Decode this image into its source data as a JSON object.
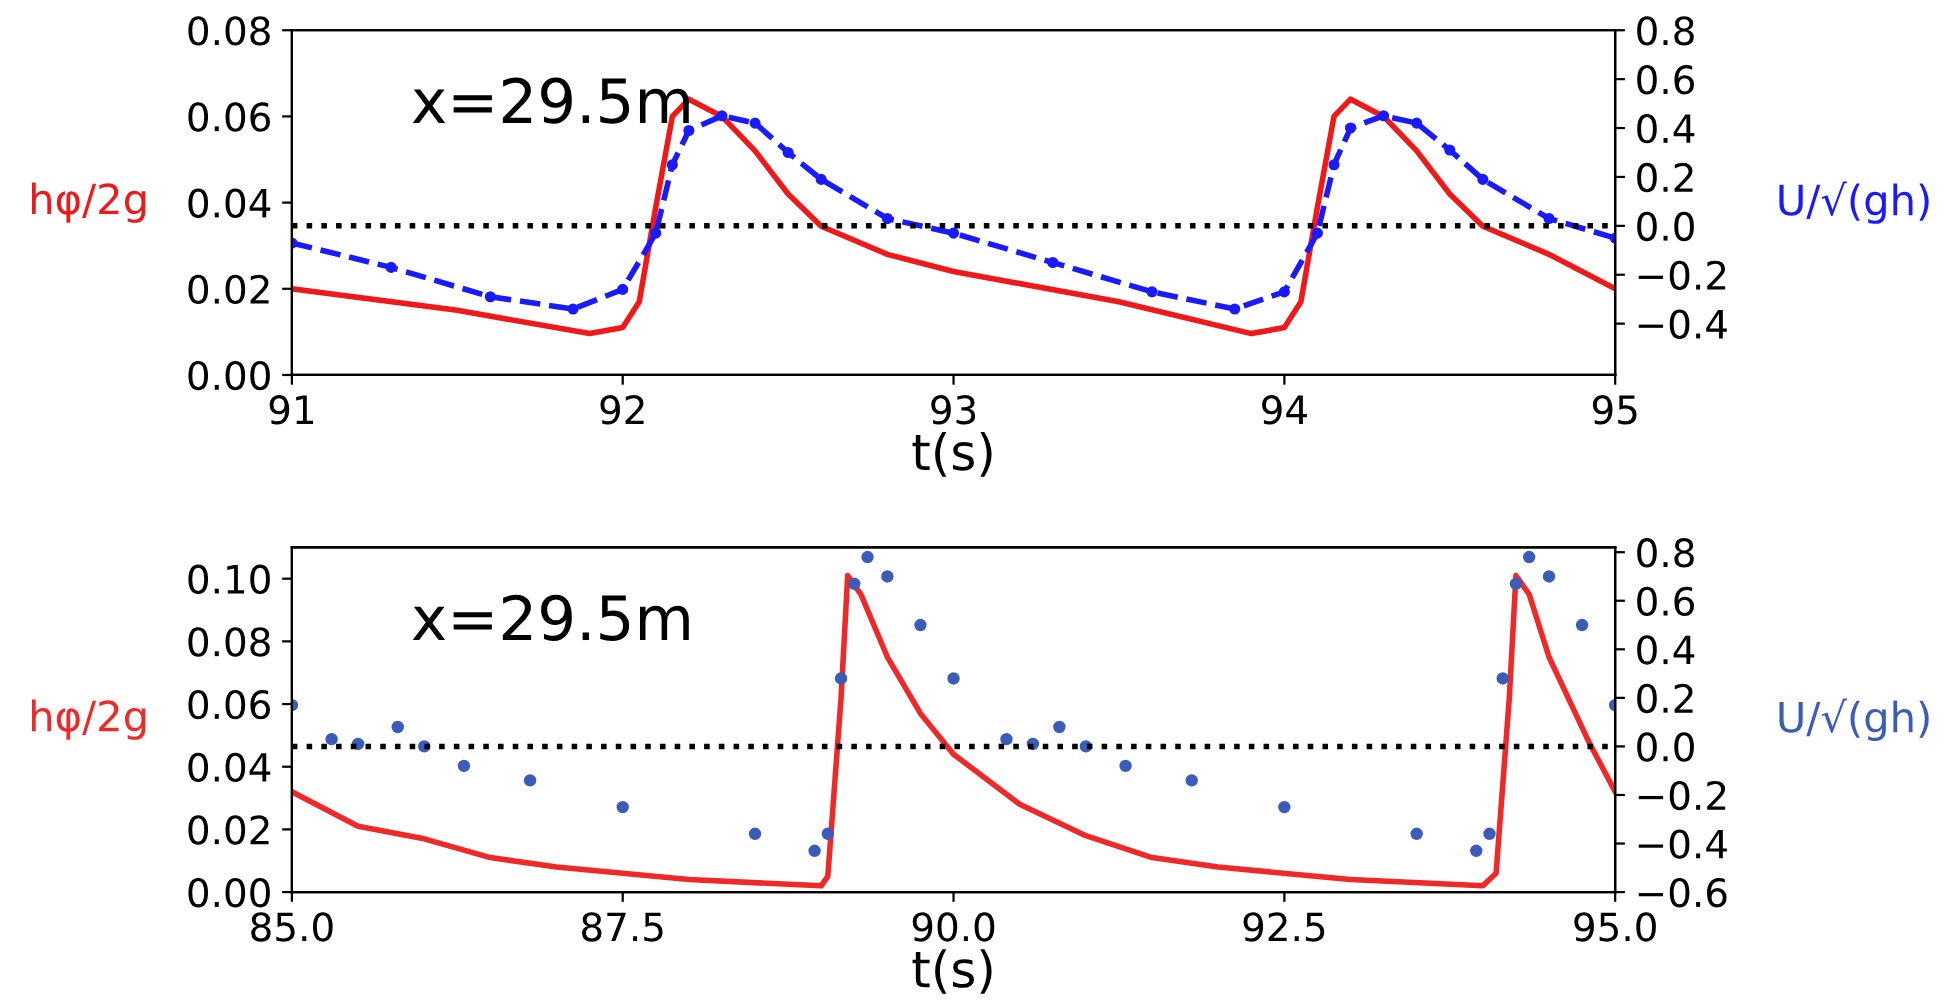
{
  "chart_data": [
    {
      "type": "line",
      "xlabel": "t(s)",
      "ylabel": "hφ/2g",
      "y2label": "U/√(gh)",
      "annotations": [
        "x=29.5m"
      ],
      "xlim": [
        91,
        95
      ],
      "xticks": [
        91,
        92,
        93,
        94,
        95
      ],
      "ylim": [
        0,
        0.08
      ],
      "yticks": [
        {
          "value": 0,
          "label": "0.00"
        },
        {
          "value": 0.02,
          "label": "0.02"
        },
        {
          "value": 0.04,
          "label": "0.04"
        },
        {
          "value": 0.06,
          "label": "0.06"
        },
        {
          "value": 0.08,
          "label": "0.08"
        }
      ],
      "y2lim": [
        -0.61,
        0.8
      ],
      "y2ticks": [
        {
          "value": -0.4,
          "label": "−0.4"
        },
        {
          "value": -0.2,
          "label": "−0.2"
        },
        {
          "value": 0,
          "label": "0.0"
        },
        {
          "value": 0.2,
          "label": "0.2"
        },
        {
          "value": 0.4,
          "label": "0.4"
        },
        {
          "value": 0.6,
          "label": "0.6"
        },
        {
          "value": 0.8,
          "label": "0.8"
        }
      ],
      "ref_lines": [
        {
          "axis": "y2",
          "value": 0,
          "color": "#000000",
          "line_style": "dotted"
        }
      ],
      "grid": false,
      "legend": false,
      "series": [
        {
          "color": "#f01818",
          "line_style": "solid",
          "marker": "none",
          "x": [
            91.0,
            91.5,
            91.9,
            92.0,
            92.05,
            92.1,
            92.15,
            92.2,
            92.3,
            92.4,
            92.5,
            92.6,
            92.8,
            93.0,
            93.5,
            93.9,
            94.0,
            94.05,
            94.1,
            94.15,
            94.2,
            94.3,
            94.4,
            94.5,
            94.6,
            94.8,
            95.0
          ],
          "values": [
            0.02,
            0.015,
            0.0096,
            0.011,
            0.017,
            0.039,
            0.06,
            0.064,
            0.06,
            0.052,
            0.042,
            0.0345,
            0.028,
            0.024,
            0.017,
            0.0096,
            0.011,
            0.017,
            0.039,
            0.06,
            0.064,
            0.06,
            0.052,
            0.042,
            0.0345,
            0.028,
            0.02
          ]
        },
        {
          "axis": "y2",
          "color": "#1a1aff",
          "line_style": "dashed",
          "marker": "circle",
          "x": [
            91.0,
            91.3,
            91.6,
            91.85,
            92.0,
            92.1,
            92.15,
            92.2,
            92.3,
            92.4,
            92.5,
            92.6,
            92.8,
            93.0,
            93.3,
            93.6,
            93.85,
            94.0,
            94.1,
            94.15,
            94.2,
            94.3,
            94.4,
            94.5,
            94.6,
            94.8,
            95.0
          ],
          "values": [
            -0.07,
            -0.17,
            -0.29,
            -0.34,
            -0.26,
            -0.03,
            0.25,
            0.39,
            0.45,
            0.42,
            0.3,
            0.19,
            0.03,
            -0.03,
            -0.15,
            -0.27,
            -0.34,
            -0.27,
            -0.03,
            0.25,
            0.4,
            0.45,
            0.42,
            0.31,
            0.19,
            0.03,
            -0.05
          ]
        }
      ]
    },
    {
      "type": "line",
      "xlabel": "t(s)",
      "ylabel": "hφ/2g",
      "y2label": "U/√(gh)",
      "annotations": [
        "x=29.5m"
      ],
      "xlim": [
        85,
        95
      ],
      "xticks": [
        {
          "value": 85,
          "label": "85.0"
        },
        {
          "value": 87.5,
          "label": "87.5"
        },
        {
          "value": 90,
          "label": "90.0"
        },
        {
          "value": 92.5,
          "label": "92.5"
        },
        {
          "value": 95,
          "label": "95.0"
        }
      ],
      "ylim": [
        0,
        0.11
      ],
      "yticks": [
        {
          "value": 0,
          "label": "0.00"
        },
        {
          "value": 0.02,
          "label": "0.02"
        },
        {
          "value": 0.04,
          "label": "0.04"
        },
        {
          "value": 0.06,
          "label": "0.06"
        },
        {
          "value": 0.08,
          "label": "0.08"
        },
        {
          "value": 0.1,
          "label": "0.10"
        }
      ],
      "y2lim": [
        -0.6,
        0.82
      ],
      "y2ticks": [
        {
          "value": -0.6,
          "label": "−0.6"
        },
        {
          "value": -0.4,
          "label": "−0.4"
        },
        {
          "value": -0.2,
          "label": "−0.2"
        },
        {
          "value": 0,
          "label": "0.0"
        },
        {
          "value": 0.2,
          "label": "0.2"
        },
        {
          "value": 0.4,
          "label": "0.4"
        },
        {
          "value": 0.6,
          "label": "0.6"
        },
        {
          "value": 0.8,
          "label": "0.8"
        }
      ],
      "ref_lines": [
        {
          "axis": "y2",
          "value": 0,
          "color": "#000000",
          "line_style": "dotted"
        }
      ],
      "grid": false,
      "legend": false,
      "series": [
        {
          "color": "#f02828",
          "line_style": "solid",
          "marker": "none",
          "x": [
            85.0,
            85.5,
            86.0,
            86.5,
            87.0,
            88.0,
            89.0,
            89.05,
            89.15,
            89.2,
            89.3,
            89.5,
            89.75,
            90.0,
            90.5,
            91.0,
            91.5,
            92.0,
            93.0,
            94.0,
            94.1,
            94.2,
            94.25,
            94.35,
            94.5,
            94.8,
            95.0
          ],
          "values": [
            0.032,
            0.021,
            0.017,
            0.011,
            0.008,
            0.004,
            0.002,
            0.005,
            0.062,
            0.101,
            0.095,
            0.075,
            0.057,
            0.044,
            0.028,
            0.018,
            0.011,
            0.008,
            0.004,
            0.002,
            0.006,
            0.062,
            0.101,
            0.095,
            0.075,
            0.048,
            0.032
          ]
        },
        {
          "type": "scatter",
          "axis": "y2",
          "color": "#3b5cb8",
          "marker": "circle",
          "x": [
            85.0,
            85.3,
            85.5,
            85.8,
            86.0,
            86.3,
            86.8,
            87.5,
            88.5,
            88.95,
            89.05,
            89.15,
            89.25,
            89.35,
            89.5,
            89.75,
            90.0,
            90.4,
            90.6,
            90.8,
            91.0,
            91.3,
            91.8,
            92.5,
            93.5,
            93.95,
            94.05,
            94.15,
            94.25,
            94.35,
            94.5,
            94.75,
            95.0
          ],
          "values": [
            0.17,
            0.03,
            0.01,
            0.08,
            0.0,
            -0.08,
            -0.14,
            -0.25,
            -0.36,
            -0.43,
            -0.36,
            0.28,
            0.67,
            0.78,
            0.7,
            0.5,
            0.28,
            0.03,
            0.01,
            0.08,
            0.0,
            -0.08,
            -0.14,
            -0.25,
            -0.36,
            -0.43,
            -0.36,
            0.28,
            0.67,
            0.78,
            0.7,
            0.5,
            0.17
          ]
        }
      ]
    }
  ]
}
